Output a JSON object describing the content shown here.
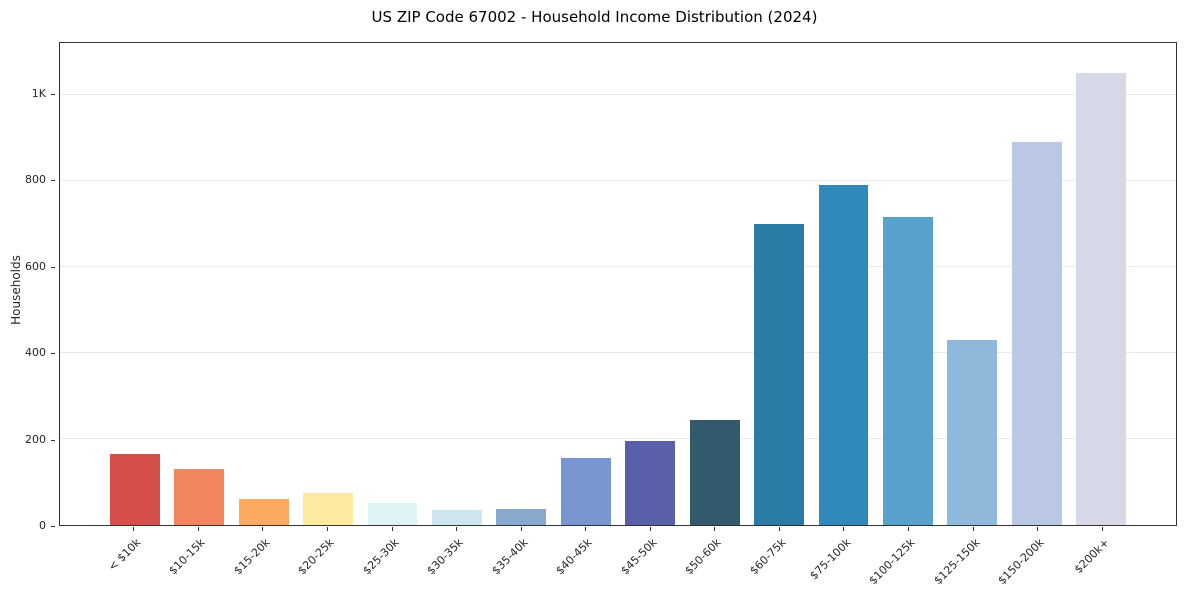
{
  "chart_data": {
    "type": "bar",
    "title": "US ZIP Code 67002 - Household Income Distribution (2024)",
    "xlabel": "",
    "ylabel": "Households",
    "ylim": [
      0,
      1120
    ],
    "grid": true,
    "legend": false,
    "categories": [
      "< $10k",
      "$10-15k",
      "$15-20k",
      "$20-25k",
      "$25-30k",
      "$30-35k",
      "$35-40k",
      "$40-45k",
      "$45-50k",
      "$50-60k",
      "$60-75k",
      "$75-100k",
      "$100-125k",
      "$125-150k",
      "$150-200k",
      "$200k+"
    ],
    "values": [
      165,
      130,
      60,
      75,
      50,
      35,
      38,
      155,
      195,
      245,
      700,
      790,
      715,
      430,
      890,
      1050
    ],
    "bar_colors": [
      "#d5504a",
      "#f4865f",
      "#fbaa60",
      "#fee9a0",
      "#e0f3f4",
      "#cde6f0",
      "#87a9ce",
      "#7795ce",
      "#5a5fa9",
      "#33596c",
      "#2a7ba5",
      "#3188bb",
      "#57a2ca",
      "#8fb9db",
      "#bac8e3",
      "#d8d9e8"
    ],
    "yticks": [
      {
        "value": 0,
        "label": "0"
      },
      {
        "value": 200,
        "label": "200"
      },
      {
        "value": 400,
        "label": "400"
      },
      {
        "value": 600,
        "label": "600"
      },
      {
        "value": 800,
        "label": "800"
      },
      {
        "value": 1000,
        "label": "1K"
      }
    ]
  }
}
